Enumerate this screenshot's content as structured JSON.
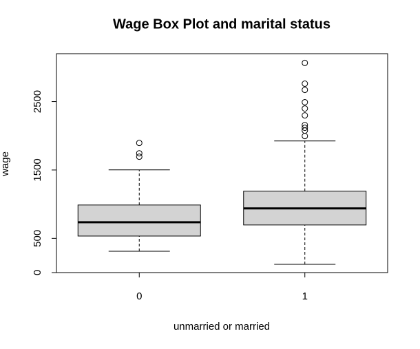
{
  "chart_data": {
    "type": "box",
    "title": "Wage Box Plot and marital status",
    "x_label": "unmarried or married",
    "y_label": "wage",
    "categories": [
      "0",
      "1"
    ],
    "boxes": [
      {
        "whisker_low": 312,
        "q1": 534,
        "median": 736,
        "q3": 988,
        "whisker_high": 1502,
        "outliers": [
          1694,
          1744,
          1895
        ]
      },
      {
        "whisker_low": 121,
        "q1": 696,
        "median": 938,
        "q3": 1190,
        "whisker_high": 1925,
        "outliers": [
          1996,
          2077,
          2117,
          2157,
          2298,
          2399,
          2490,
          2671,
          2762,
          3065
        ]
      }
    ],
    "color": "#d3d3d3",
    "ylim": [
      0,
      3200
    ],
    "yticks": [
      0,
      500,
      1500,
      2500
    ]
  }
}
